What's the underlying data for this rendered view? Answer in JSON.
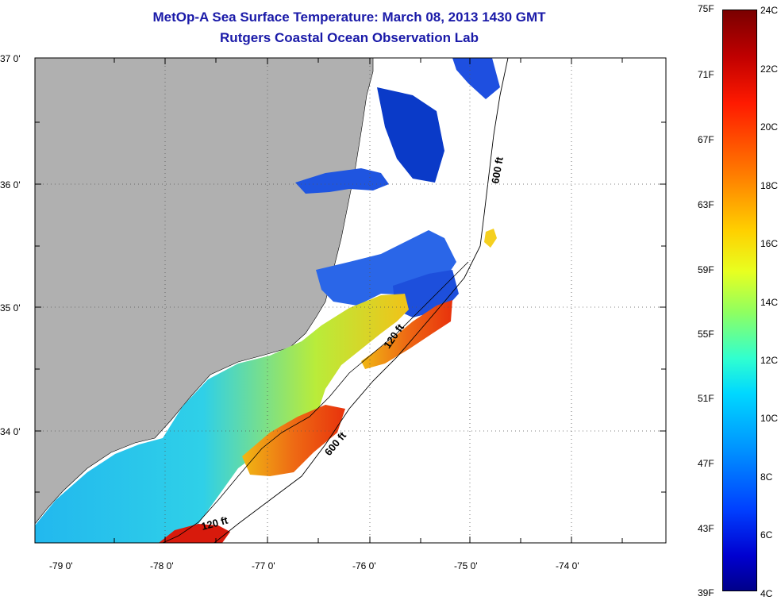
{
  "title": {
    "line1": "MetOp-A Sea Surface Temperature:  March 08, 2013 1430 GMT",
    "line2": "Rutgers Coastal Ocean Observation Lab"
  },
  "axes": {
    "lat_labels": [
      "37 0'",
      "36 0'",
      "35 0'",
      "34 0'"
    ],
    "lon_labels": [
      "-79 0'",
      "-78 0'",
      "-77 0'",
      "-76 0'",
      "-75 0'",
      "-74 0'"
    ]
  },
  "contours": {
    "label_600_north": "600 ft",
    "label_120_mid": "120 ft",
    "label_600_south": "600 ft",
    "label_120_south": "120 ft"
  },
  "colorbar": {
    "fahrenheit_labels": [
      "75F",
      "71F",
      "67F",
      "63F",
      "59F",
      "55F",
      "51F",
      "47F",
      "43F",
      "39F"
    ],
    "celsius_labels": [
      "24C",
      "22C",
      "20C",
      "18C",
      "16C",
      "14C",
      "12C",
      "10C",
      "8C",
      "6C",
      "4C"
    ]
  },
  "colors": {
    "land": "#b0b0b0",
    "title": "#1a1aa8",
    "no_data": "#ffffff"
  }
}
